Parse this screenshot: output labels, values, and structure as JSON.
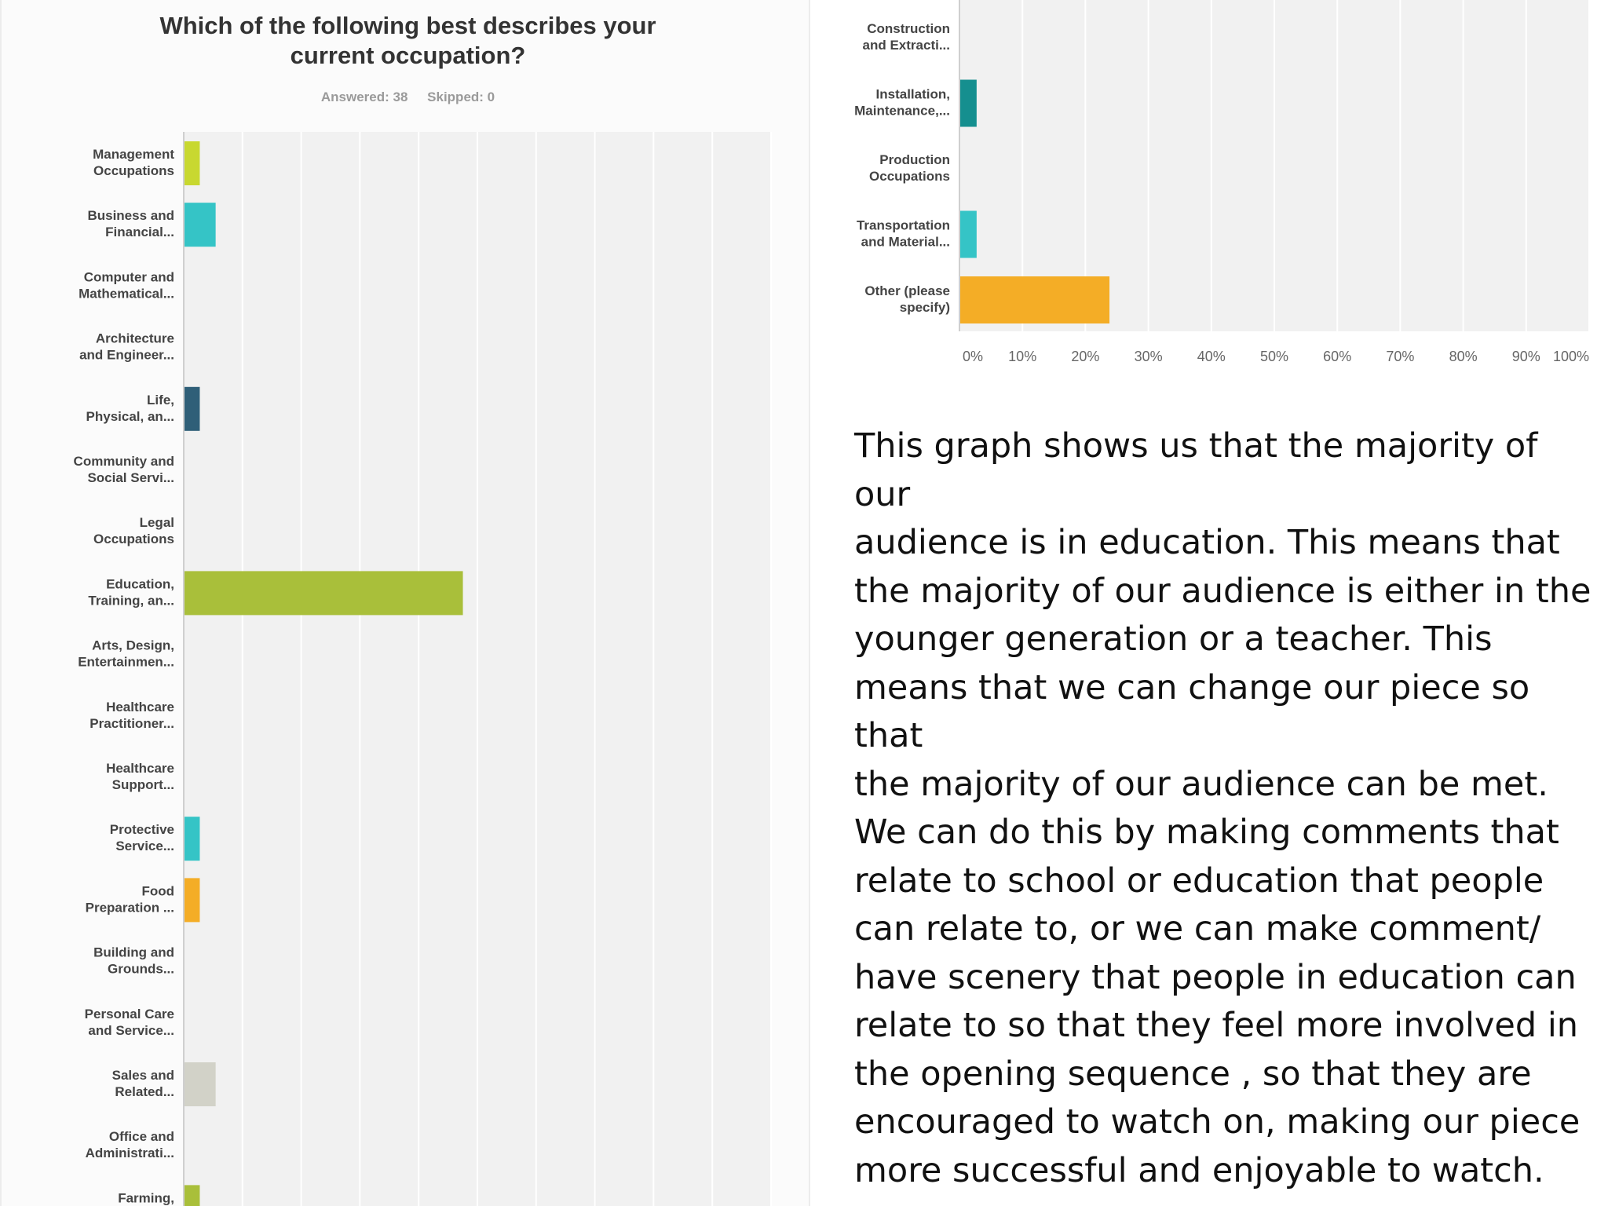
{
  "chart_data": [
    {
      "type": "bar",
      "orientation": "horizontal",
      "title": "Which of the following best describes your current occupation?",
      "answered": "Answered: 38",
      "skipped": "Skipped: 0",
      "categories": [
        [
          "Management",
          "Occupations"
        ],
        [
          "Business and",
          "Financial..."
        ],
        [
          "Computer and",
          "Mathematical..."
        ],
        [
          "Architecture",
          "and Engineer..."
        ],
        [
          "Life,",
          "Physical, an..."
        ],
        [
          "Community and",
          "Social Servi..."
        ],
        [
          "Legal",
          "Occupations"
        ],
        [
          "Education,",
          "Training, an..."
        ],
        [
          "Arts, Design,",
          "Entertainmen..."
        ],
        [
          "Healthcare",
          "Practitioner..."
        ],
        [
          "Healthcare",
          "Support..."
        ],
        [
          "Protective",
          "Service..."
        ],
        [
          "Food",
          "Preparation ..."
        ],
        [
          "Building and",
          "Grounds..."
        ],
        [
          "Personal Care",
          "and Service..."
        ],
        [
          "Sales and",
          "Related..."
        ],
        [
          "Office and",
          "Administrati..."
        ],
        [
          "Farming,",
          ""
        ]
      ],
      "values": [
        2.6,
        5.3,
        0,
        0,
        2.6,
        0,
        0,
        47.4,
        0,
        0,
        0,
        2.6,
        2.6,
        0,
        0,
        5.3,
        0,
        2.6
      ],
      "colors": [
        "#c8d830",
        "#35c4c6",
        "#e0e0e0",
        "#e0e0e0",
        "#2f5f78",
        "#e0e0e0",
        "#e0e0e0",
        "#a9bf3a",
        "#e0e0e0",
        "#e0e0e0",
        "#e0e0e0",
        "#35c4c6",
        "#f4ad26",
        "#e0e0e0",
        "#e0e0e0",
        "#d2d2c8",
        "#e0e0e0",
        "#a9bf3a"
      ],
      "xlim": [
        0,
        100
      ],
      "grid": true
    },
    {
      "type": "bar",
      "orientation": "horizontal",
      "categories": [
        [
          "Construction",
          "and Extracti..."
        ],
        [
          "Installation,",
          "Maintenance,..."
        ],
        [
          "Production",
          "Occupations"
        ],
        [
          "Transportation",
          "and Material..."
        ],
        [
          "Other (please",
          "specify)"
        ]
      ],
      "values": [
        0,
        2.6,
        0,
        2.6,
        23.7
      ],
      "colors": [
        "#e0e0e0",
        "#158f8f",
        "#e0e0e0",
        "#35c4c6",
        "#f4ad26"
      ],
      "xlim": [
        0,
        100
      ],
      "x_ticks": [
        "0%",
        "10%",
        "20%",
        "30%",
        "40%",
        "50%",
        "60%",
        "70%",
        "80%",
        "90%",
        "100%"
      ],
      "grid": true
    }
  ],
  "notes": {
    "lines": [
      "This graph shows us that the majority of our",
      "audience is in education. This means that",
      "the majority of our audience is either in the",
      "younger generation or a teacher. This",
      "means that we can change our piece so that",
      "the majority of our audience can be met.",
      "We can do this by making comments that",
      "relate to school or education that people",
      "can relate to, or we can make comment/",
      "have scenery that people in education can",
      "relate to so that they feel more involved in",
      "the opening sequence , so that they are",
      "encouraged to watch on, making our piece",
      "more successful and enjoyable to watch."
    ]
  }
}
